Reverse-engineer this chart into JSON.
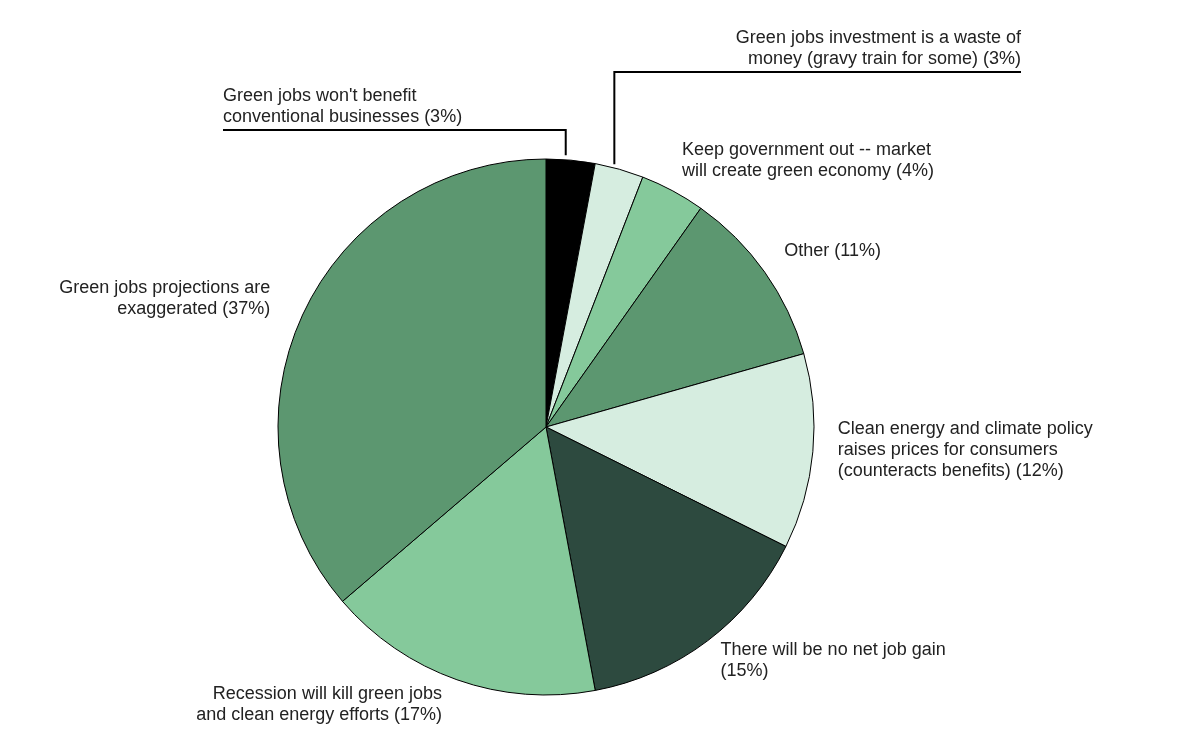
{
  "chart_data": {
    "type": "pie",
    "categories": [
      "Green jobs won't benefit conventional businesses",
      "Green jobs investment is a waste of money (gravy train for some)",
      "Keep government out -- market will create green economy",
      "Other",
      "Clean energy and climate policy raises prices for consumers (counteracts benefits)",
      "There will be no net job gain",
      "Recession will kill green jobs and clean energy efforts",
      "Green jobs projections are exaggerated"
    ],
    "values": [
      3,
      3,
      4,
      11,
      12,
      15,
      17,
      37
    ],
    "value_labels": [
      "(3%)",
      "(3%)",
      "(4%)",
      "(11%)",
      "(12%)",
      "(15%)",
      "(17%)",
      "(37%)"
    ],
    "colors": [
      "#000000",
      "#d6ede0",
      "#85c99b",
      "#5c9770",
      "#d6ede0",
      "#2d4a3f",
      "#85c99b",
      "#5c9770"
    ]
  }
}
